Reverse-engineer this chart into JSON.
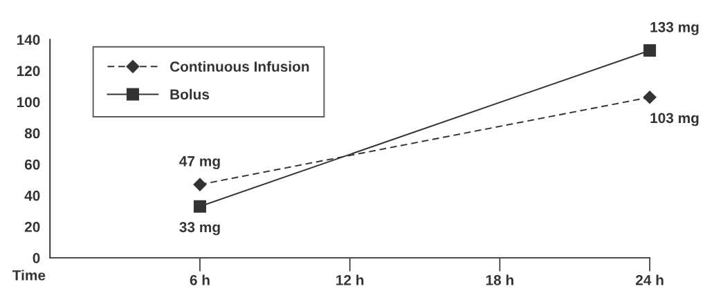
{
  "chart_data": {
    "type": "line",
    "xlabel": "Time",
    "x": [
      6,
      24
    ],
    "series": [
      {
        "name": "Continuous Infusion",
        "color": "#333333",
        "values": [
          47,
          103
        ],
        "marker": "diamond",
        "line_style": "dashed",
        "value_labels": [
          "47 mg",
          "103 mg"
        ]
      },
      {
        "name": "Bolus",
        "color": "#333333",
        "values": [
          33,
          133
        ],
        "marker": "square",
        "line_style": "solid",
        "value_labels": [
          "33 mg",
          "133 mg"
        ]
      }
    ],
    "xlim": [
      0,
      24
    ],
    "xticks": [
      {
        "value": 6,
        "label": "6 h"
      },
      {
        "value": 12,
        "label": "12 h"
      },
      {
        "value": 18,
        "label": "18 h"
      },
      {
        "value": 24,
        "label": "24 h"
      }
    ],
    "ylim": [
      0,
      140
    ],
    "yticks": [
      0,
      20,
      40,
      60,
      80,
      100,
      120,
      140
    ],
    "grid": false,
    "legend": "top left"
  }
}
